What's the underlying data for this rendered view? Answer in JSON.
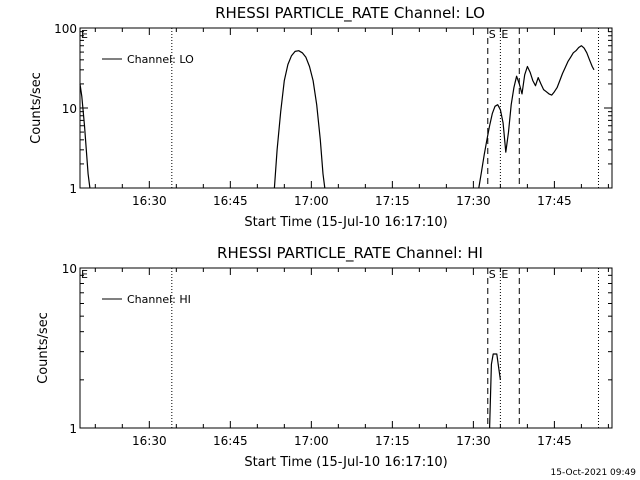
{
  "chart_data": [
    {
      "type": "line",
      "title": "RHESSI PARTICLE_RATE Channel: LO",
      "xlabel": "Start Time (15-Jul-10 16:17:10)",
      "ylabel": "Counts/sec",
      "yscale": "log",
      "ylim": [
        1,
        100
      ],
      "xlim": [
        "16:17:10",
        "17:55:40"
      ],
      "x_ticks": [
        "16:30",
        "16:45",
        "17:00",
        "17:15",
        "17:30",
        "17:45"
      ],
      "y_ticks": [
        "1",
        "10",
        "100"
      ],
      "legend": "top-left",
      "grid": false,
      "series": [
        {
          "name": "Channel: LO",
          "color": "#000000",
          "points": [
            [
              "16:17:10",
              20
            ],
            [
              "16:17:30",
              14
            ],
            [
              "16:18:00",
              6
            ],
            [
              "16:18:20",
              3
            ],
            [
              "16:18:40",
              1.5
            ],
            [
              "16:19:00",
              1
            ],
            [
              "16:53:10",
              1
            ],
            [
              "16:53:40",
              3
            ],
            [
              "16:54:20",
              9
            ],
            [
              "16:55:00",
              22
            ],
            [
              "16:55:40",
              35
            ],
            [
              "16:56:20",
              45
            ],
            [
              "16:57:00",
              51
            ],
            [
              "16:57:40",
              52
            ],
            [
              "16:58:20",
              49
            ],
            [
              "16:59:00",
              43
            ],
            [
              "16:59:40",
              33
            ],
            [
              "17:00:20",
              22
            ],
            [
              "17:01:00",
              11
            ],
            [
              "17:01:40",
              4
            ],
            [
              "17:02:10",
              1.5
            ],
            [
              "17:02:30",
              1
            ],
            [
              "17:31:00",
              1
            ],
            [
              "17:31:30",
              1.6
            ],
            [
              "17:32:00",
              2.6
            ],
            [
              "17:32:30",
              4
            ],
            [
              "17:33:00",
              6
            ],
            [
              "17:33:30",
              8.5
            ],
            [
              "17:34:00",
              10.5
            ],
            [
              "17:34:30",
              11
            ],
            [
              "17:35:00",
              9.5
            ],
            [
              "17:35:30",
              6.5
            ],
            [
              "17:36:00",
              2.8
            ],
            [
              "17:36:30",
              5
            ],
            [
              "17:37:00",
              11
            ],
            [
              "17:37:30",
              18
            ],
            [
              "17:38:00",
              25
            ],
            [
              "17:38:30",
              20
            ],
            [
              "17:39:00",
              15
            ],
            [
              "17:39:30",
              26
            ],
            [
              "17:40:00",
              33
            ],
            [
              "17:40:30",
              28
            ],
            [
              "17:41:00",
              22
            ],
            [
              "17:41:30",
              19
            ],
            [
              "17:42:00",
              24
            ],
            [
              "17:42:30",
              20
            ],
            [
              "17:43:00",
              17
            ],
            [
              "17:43:30",
              16
            ],
            [
              "17:44:00",
              15
            ],
            [
              "17:44:30",
              14.5
            ],
            [
              "17:45:00",
              16
            ],
            [
              "17:45:30",
              18
            ],
            [
              "17:46:00",
              22
            ],
            [
              "17:46:30",
              27
            ],
            [
              "17:47:00",
              32
            ],
            [
              "17:47:30",
              38
            ],
            [
              "17:48:00",
              43
            ],
            [
              "17:48:30",
              49
            ],
            [
              "17:49:00",
              52
            ],
            [
              "17:49:30",
              57
            ],
            [
              "17:50:00",
              60
            ],
            [
              "17:50:30",
              56
            ],
            [
              "17:51:00",
              49
            ],
            [
              "17:51:30",
              40
            ],
            [
              "17:52:00",
              33
            ],
            [
              "17:52:20",
              30
            ]
          ]
        }
      ],
      "markers": {
        "eclipse_lines": [
          "16:34:10",
          "17:53:10"
        ],
        "saa_lines": [
          "17:32:40",
          "17:38:30"
        ],
        "event_line": "17:35:00",
        "label_E_left": "E",
        "label_S": "S",
        "label_E": "E"
      }
    },
    {
      "type": "line",
      "title": "RHESSI PARTICLE_RATE Channel: HI",
      "xlabel": "Start Time (15-Jul-10 16:17:10)",
      "ylabel": "Counts/sec",
      "yscale": "log",
      "ylim": [
        1,
        10
      ],
      "xlim": [
        "16:17:10",
        "17:55:40"
      ],
      "x_ticks": [
        "16:30",
        "16:45",
        "17:00",
        "17:15",
        "17:30",
        "17:45"
      ],
      "y_ticks": [
        "1",
        "10"
      ],
      "legend": "top-left",
      "grid": false,
      "series": [
        {
          "name": "Channel: HI",
          "color": "#000000",
          "points": [
            [
              "17:33:00",
              1
            ],
            [
              "17:33:20",
              2.5
            ],
            [
              "17:33:40",
              2.9
            ],
            [
              "17:34:20",
              2.9
            ],
            [
              "17:34:40",
              2.4
            ],
            [
              "17:35:00",
              2
            ]
          ]
        }
      ],
      "markers": {
        "eclipse_lines": [
          "16:34:10",
          "17:53:10"
        ],
        "saa_lines": [
          "17:32:40",
          "17:38:30"
        ],
        "event_line": "17:35:00",
        "label_E_left": "E",
        "label_S": "S",
        "label_E": "E"
      }
    }
  ],
  "timestamp": "15-Oct-2021 09:49"
}
